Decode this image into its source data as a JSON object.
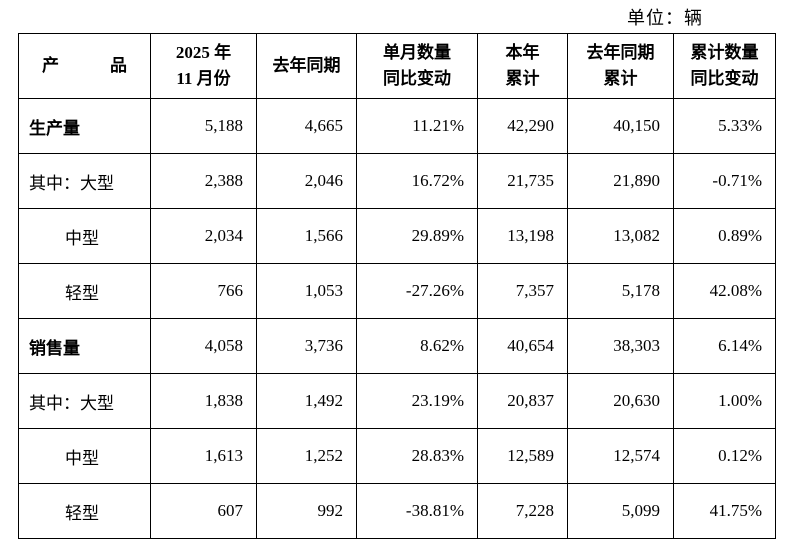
{
  "unit_label": "单位：辆",
  "table": {
    "columns": [
      {
        "lines": [
          "产　　　品"
        ]
      },
      {
        "lines": [
          "2025 年",
          "11 月份"
        ]
      },
      {
        "lines": [
          "去年同期"
        ]
      },
      {
        "lines": [
          "单月数量",
          "同比变动"
        ]
      },
      {
        "lines": [
          "本年",
          "累计"
        ]
      },
      {
        "lines": [
          "去年同期",
          "累计"
        ]
      },
      {
        "lines": [
          "累计数量",
          "同比变动"
        ]
      }
    ],
    "rows": [
      {
        "label": "生产量",
        "bold": true,
        "indent": false,
        "values": [
          "5,188",
          "4,665",
          "11.21%",
          "42,290",
          "40,150",
          "5.33%"
        ]
      },
      {
        "label": "其中：大型",
        "bold": false,
        "indent": false,
        "values": [
          "2,388",
          "2,046",
          "16.72%",
          "21,735",
          "21,890",
          "-0.71%"
        ]
      },
      {
        "label": "中型",
        "bold": false,
        "indent": true,
        "values": [
          "2,034",
          "1,566",
          "29.89%",
          "13,198",
          "13,082",
          "0.89%"
        ]
      },
      {
        "label": "轻型",
        "bold": false,
        "indent": true,
        "values": [
          "766",
          "1,053",
          "-27.26%",
          "7,357",
          "5,178",
          "42.08%"
        ]
      },
      {
        "label": "销售量",
        "bold": true,
        "indent": false,
        "values": [
          "4,058",
          "3,736",
          "8.62%",
          "40,654",
          "38,303",
          "6.14%"
        ]
      },
      {
        "label": "其中：大型",
        "bold": false,
        "indent": false,
        "values": [
          "1,838",
          "1,492",
          "23.19%",
          "20,837",
          "20,630",
          "1.00%"
        ]
      },
      {
        "label": "中型",
        "bold": false,
        "indent": true,
        "values": [
          "1,613",
          "1,252",
          "28.83%",
          "12,589",
          "12,574",
          "0.12%"
        ]
      },
      {
        "label": "轻型",
        "bold": false,
        "indent": true,
        "values": [
          "607",
          "992",
          "-38.81%",
          "7,228",
          "5,099",
          "41.75%"
        ]
      }
    ]
  }
}
